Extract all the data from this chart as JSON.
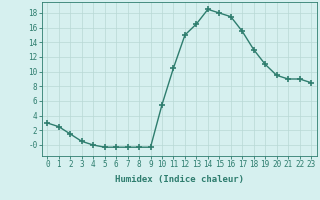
{
  "x": [
    0,
    1,
    2,
    3,
    4,
    5,
    6,
    7,
    8,
    9,
    10,
    11,
    12,
    13,
    14,
    15,
    16,
    17,
    18,
    19,
    20,
    21,
    22,
    23
  ],
  "y": [
    3.0,
    2.5,
    1.5,
    0.5,
    0.0,
    -0.3,
    -0.3,
    -0.3,
    -0.3,
    -0.3,
    5.5,
    10.5,
    15.0,
    16.5,
    18.5,
    18.0,
    17.5,
    15.5,
    13.0,
    11.0,
    9.5,
    9.0,
    9.0,
    8.5
  ],
  "line_color": "#2e7d6e",
  "marker": "+",
  "marker_size": 4,
  "marker_lw": 1.2,
  "bg_color": "#d6f0ef",
  "grid_color": "#b8d8d5",
  "xlabel": "Humidex (Indice chaleur)",
  "xlabel_fontsize": 6.5,
  "ylabel_ticks": [
    0,
    2,
    4,
    6,
    8,
    10,
    12,
    14,
    16,
    18
  ],
  "ylim": [
    -1.5,
    19.5
  ],
  "xlim": [
    -0.5,
    23.5
  ],
  "xtick_labels": [
    "0",
    "1",
    "2",
    "3",
    "4",
    "5",
    "6",
    "7",
    "8",
    "9",
    "10",
    "11",
    "12",
    "13",
    "14",
    "15",
    "16",
    "17",
    "18",
    "19",
    "20",
    "21",
    "22",
    "23"
  ],
  "tick_fontsize": 5.5,
  "linewidth": 1.0
}
